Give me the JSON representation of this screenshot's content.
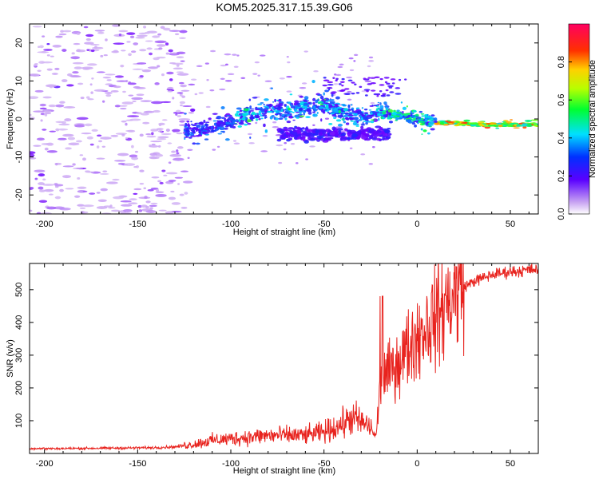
{
  "title": "KOM5.2025.317.15.39.G06",
  "chart_data": [
    {
      "type": "heatmap",
      "xlabel": "Height of straight line (km)",
      "ylabel": "Frequency (Hz)",
      "xlim": [
        -208,
        65
      ],
      "ylim": [
        -25,
        25
      ],
      "xticks": [
        -200,
        -150,
        -100,
        -50,
        0,
        50
      ],
      "yticks": [
        -20,
        -10,
        0,
        10,
        20
      ],
      "ridge": [
        {
          "x": -120,
          "y": -3
        },
        {
          "x": -110,
          "y": -2
        },
        {
          "x": -100,
          "y": -1
        },
        {
          "x": -90,
          "y": 1
        },
        {
          "x": -80,
          "y": 3
        },
        {
          "x": -70,
          "y": 2
        },
        {
          "x": -60,
          "y": 3
        },
        {
          "x": -50,
          "y": 4
        },
        {
          "x": -40,
          "y": 2
        },
        {
          "x": -30,
          "y": 0
        },
        {
          "x": -20,
          "y": 2
        },
        {
          "x": -10,
          "y": 1
        },
        {
          "x": 0,
          "y": 0
        },
        {
          "x": 10,
          "y": -1
        },
        {
          "x": 20,
          "y": -1
        },
        {
          "x": 30,
          "y": -1.5
        },
        {
          "x": 40,
          "y": -1.5
        },
        {
          "x": 50,
          "y": -1.5
        },
        {
          "x": 65,
          "y": -1.5
        }
      ],
      "colorbar": {
        "label": "Normalized spectral amplitude",
        "range": [
          0.0,
          1.0
        ],
        "ticks": [
          "0.0",
          "0.2",
          "0.4",
          "0.6",
          "0.8"
        ]
      }
    },
    {
      "type": "line",
      "xlabel": "Height of straight line (km)",
      "ylabel": "SNR (v/v)",
      "xlim": [
        -208,
        65
      ],
      "ylim": [
        0,
        580
      ],
      "xticks": [
        -200,
        -150,
        -100,
        -50,
        0,
        50
      ],
      "yticks": [
        100,
        200,
        300,
        400,
        500
      ],
      "series": [
        {
          "name": "SNR",
          "color": "#e8231e",
          "x": [
            -208,
            -190,
            -170,
            -150,
            -140,
            -130,
            -120,
            -110,
            -100,
            -90,
            -80,
            -70,
            -60,
            -50,
            -40,
            -35,
            -30,
            -25,
            -22,
            -20,
            -15,
            -10,
            -5,
            0,
            10,
            20,
            30,
            40,
            50,
            65
          ],
          "y": [
            15,
            15,
            16,
            17,
            18,
            20,
            28,
            40,
            45,
            50,
            55,
            55,
            55,
            65,
            90,
            110,
            95,
            80,
            50,
            200,
            250,
            280,
            320,
            360,
            420,
            490,
            525,
            545,
            555,
            562
          ]
        }
      ]
    }
  ],
  "colors": {
    "series": "#e8231e",
    "frame": "#000000"
  }
}
